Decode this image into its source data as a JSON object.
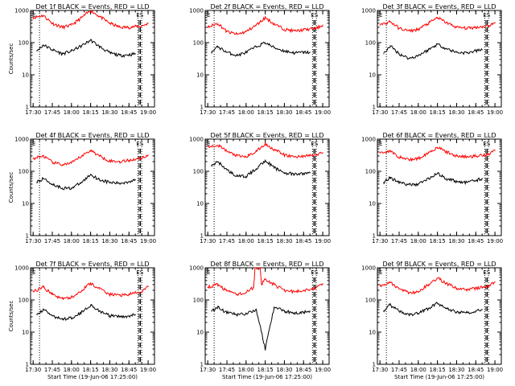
{
  "chart_data": {
    "type": "line",
    "ylim": [
      1,
      1000
    ],
    "log_y": true,
    "grid": false,
    "y_ticks": [
      1,
      10,
      100,
      1000
    ],
    "y_tick_labels": [
      "1",
      "10",
      "100",
      "1000"
    ],
    "x_ticks": [
      "17:30",
      "17:45",
      "18:00",
      "18:15",
      "18:30",
      "18:45",
      "19:00"
    ],
    "colors": {
      "events": "#000000",
      "lld": "#ff0000"
    },
    "panels": [
      {
        "title": "Det 1f BLACK = Events, RED = LLD",
        "xlabel": "",
        "ylabel": "Counts/sec",
        "left_marker": "E",
        "right_marker": "ES",
        "events": {
          "t": [
            "17:33",
            "17:38",
            "17:45",
            "17:53",
            "18:00",
            "18:08",
            "18:15",
            "18:22",
            "18:30",
            "18:38",
            "18:45",
            "18:50"
          ],
          "values": [
            55,
            85,
            60,
            45,
            55,
            80,
            120,
            75,
            48,
            40,
            42,
            45
          ]
        },
        "lld": {
          "t": [
            "17:30",
            "17:38",
            "17:45",
            "17:53",
            "18:00",
            "18:08",
            "18:15",
            "18:22",
            "18:30",
            "18:38",
            "18:45",
            "18:55",
            "19:00"
          ],
          "values": [
            600,
            700,
            400,
            300,
            350,
            600,
            1000,
            650,
            400,
            300,
            300,
            330,
            400
          ]
        }
      },
      {
        "title": "Det 2f BLACK = Events, RED = LLD",
        "xlabel": "",
        "ylabel": "",
        "left_marker": "E",
        "right_marker": "ES",
        "events": {
          "t": [
            "17:33",
            "17:38",
            "17:45",
            "17:53",
            "18:00",
            "18:08",
            "18:15",
            "18:22",
            "18:30",
            "18:38",
            "18:45",
            "18:50"
          ],
          "values": [
            50,
            75,
            50,
            40,
            50,
            75,
            100,
            70,
            55,
            48,
            50,
            50
          ]
        },
        "lld": {
          "t": [
            "17:30",
            "17:38",
            "17:45",
            "17:53",
            "18:00",
            "18:08",
            "18:15",
            "18:22",
            "18:30",
            "18:38",
            "18:45",
            "18:55",
            "19:00"
          ],
          "values": [
            300,
            400,
            220,
            180,
            220,
            350,
            600,
            380,
            260,
            230,
            250,
            280,
            350
          ]
        }
      },
      {
        "title": "Det 3f BLACK = Events, RED = LLD",
        "xlabel": "",
        "ylabel": "",
        "left_marker": "E",
        "right_marker": "ES",
        "events": {
          "t": [
            "17:33",
            "17:38",
            "17:45",
            "17:53",
            "18:00",
            "18:08",
            "18:15",
            "18:22",
            "18:30",
            "18:38",
            "18:45",
            "18:50"
          ],
          "values": [
            45,
            80,
            45,
            32,
            40,
            60,
            90,
            65,
            50,
            48,
            55,
            60
          ]
        },
        "lld": {
          "t": [
            "17:30",
            "17:38",
            "17:45",
            "17:53",
            "18:00",
            "18:08",
            "18:15",
            "18:22",
            "18:30",
            "18:38",
            "18:45",
            "18:55",
            "19:00"
          ],
          "values": [
            350,
            450,
            280,
            230,
            260,
            400,
            600,
            420,
            300,
            280,
            300,
            330,
            420
          ]
        }
      },
      {
        "title": "Det 4f BLACK = Events, RED = LLD",
        "xlabel": "",
        "ylabel": "Counts/sec",
        "left_marker": "E",
        "right_marker": "ES",
        "events": {
          "t": [
            "17:33",
            "17:38",
            "17:45",
            "17:53",
            "18:00",
            "18:08",
            "18:15",
            "18:22",
            "18:30",
            "18:38",
            "18:45",
            "18:50"
          ],
          "values": [
            45,
            60,
            40,
            30,
            30,
            45,
            80,
            55,
            45,
            42,
            48,
            55
          ]
        },
        "lld": {
          "t": [
            "17:30",
            "17:38",
            "17:45",
            "17:53",
            "18:00",
            "18:08",
            "18:15",
            "18:22",
            "18:30",
            "18:38",
            "18:45",
            "18:55",
            "19:00"
          ],
          "values": [
            250,
            300,
            190,
            160,
            180,
            300,
            450,
            300,
            210,
            200,
            220,
            260,
            320
          ]
        }
      },
      {
        "title": "Det 5f BLACK = Events, RED = LLD",
        "xlabel": "",
        "ylabel": "",
        "left_marker": "E",
        "right_marker": "ES",
        "events": {
          "t": [
            "17:33",
            "17:38",
            "17:45",
            "17:53",
            "18:00",
            "18:08",
            "18:15",
            "18:22",
            "18:30",
            "18:38",
            "18:45",
            "18:50"
          ],
          "values": [
            150,
            200,
            110,
            70,
            70,
            120,
            220,
            130,
            90,
            80,
            85,
            90
          ]
        },
        "lld": {
          "t": [
            "17:30",
            "17:38",
            "17:45",
            "17:53",
            "18:00",
            "18:08",
            "18:15",
            "18:22",
            "18:30",
            "18:38",
            "18:45",
            "18:55",
            "19:00"
          ],
          "values": [
            600,
            650,
            420,
            300,
            280,
            420,
            700,
            480,
            320,
            280,
            300,
            320,
            380
          ]
        }
      },
      {
        "title": "Det 6f BLACK = Events, RED = LLD",
        "xlabel": "",
        "ylabel": "",
        "left_marker": "E",
        "right_marker": "ES",
        "events": {
          "t": [
            "17:33",
            "17:38",
            "17:45",
            "17:53",
            "18:00",
            "18:08",
            "18:15",
            "18:22",
            "18:30",
            "18:38",
            "18:45",
            "18:50"
          ],
          "values": [
            45,
            65,
            45,
            38,
            40,
            60,
            85,
            60,
            48,
            45,
            52,
            60
          ]
        },
        "lld": {
          "t": [
            "17:30",
            "17:38",
            "17:45",
            "17:53",
            "18:00",
            "18:08",
            "18:15",
            "18:22",
            "18:30",
            "18:38",
            "18:45",
            "18:55",
            "19:00"
          ],
          "values": [
            380,
            420,
            280,
            230,
            250,
            380,
            560,
            400,
            300,
            280,
            300,
            340,
            450
          ]
        }
      },
      {
        "title": "Det 7f BLACK = Events, RED = LLD",
        "xlabel": "Start Time (19-Jun-06 17:25:00)",
        "ylabel": "Counts/sec",
        "left_marker": "E",
        "right_marker": "ES",
        "events": {
          "t": [
            "17:33",
            "17:38",
            "17:45",
            "17:53",
            "18:00",
            "18:08",
            "18:15",
            "18:22",
            "18:30",
            "18:38",
            "18:45",
            "18:50"
          ],
          "values": [
            35,
            50,
            32,
            25,
            28,
            42,
            70,
            45,
            32,
            30,
            32,
            35
          ]
        },
        "lld": {
          "t": [
            "17:30",
            "17:38",
            "17:45",
            "17:53",
            "18:00",
            "18:08",
            "18:15",
            "18:22",
            "18:30",
            "18:38",
            "18:45",
            "18:55",
            "19:00"
          ],
          "values": [
            180,
            250,
            150,
            110,
            120,
            200,
            330,
            220,
            150,
            140,
            150,
            180,
            260
          ]
        }
      },
      {
        "title": "Det 8f BLACK = Events, RED = LLD",
        "xlabel": "Start Time (19-Jun-06 17:25:00)",
        "ylabel": "",
        "left_marker": "E",
        "right_marker": "ES",
        "events": {
          "t": [
            "17:33",
            "17:38",
            "17:45",
            "17:53",
            "18:00",
            "18:08",
            "18:15",
            "18:22",
            "18:30",
            "18:38",
            "18:45",
            "18:50"
          ],
          "values": [
            45,
            60,
            40,
            35,
            38,
            50,
            3,
            60,
            45,
            40,
            42,
            45
          ]
        },
        "lld": {
          "t": [
            "17:30",
            "17:38",
            "17:45",
            "17:53",
            "18:00",
            "18:06",
            "18:07",
            "18:11",
            "18:12",
            "18:15",
            "18:22",
            "18:30",
            "18:38",
            "18:45",
            "18:55",
            "19:00"
          ],
          "values": [
            250,
            300,
            190,
            150,
            170,
            250,
            1000,
            1000,
            300,
            450,
            300,
            200,
            180,
            200,
            240,
            320
          ]
        }
      },
      {
        "title": "Det 9f BLACK = Events, RED = LLD",
        "xlabel": "Start Time (19-Jun-06 17:25:00)",
        "ylabel": "",
        "left_marker": "E",
        "right_marker": "ES",
        "events": {
          "t": [
            "17:33",
            "17:38",
            "17:45",
            "17:53",
            "18:00",
            "18:08",
            "18:15",
            "18:22",
            "18:30",
            "18:38",
            "18:45",
            "18:50"
          ],
          "values": [
            45,
            70,
            45,
            35,
            38,
            55,
            80,
            55,
            42,
            40,
            45,
            50
          ]
        },
        "lld": {
          "t": [
            "17:30",
            "17:38",
            "17:45",
            "17:53",
            "18:00",
            "18:08",
            "18:15",
            "18:22",
            "18:30",
            "18:38",
            "18:45",
            "18:55",
            "19:00"
          ],
          "values": [
            280,
            350,
            220,
            170,
            180,
            300,
            480,
            330,
            230,
            210,
            230,
            270,
            360
          ]
        }
      }
    ]
  }
}
